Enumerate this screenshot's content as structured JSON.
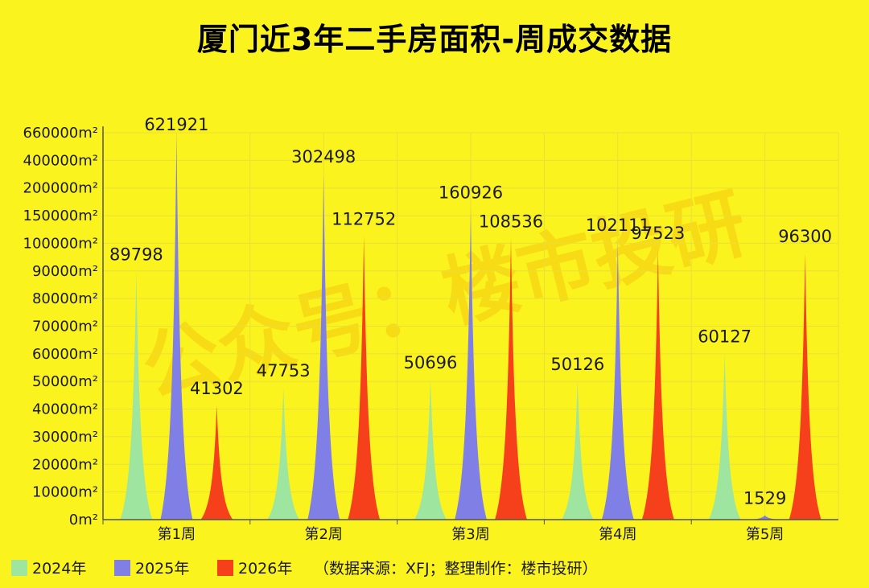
{
  "watermark": "公众号：楼市投研",
  "chart_data": {
    "type": "bar",
    "title": "厦门近3年二手房面积-周成交数据",
    "xlabel": "",
    "ylabel": "",
    "categories": [
      "第1周",
      "第2周",
      "第3周",
      "第4周",
      "第5周"
    ],
    "y_ticks": [
      {
        "value": 0,
        "label": "0m²"
      },
      {
        "value": 10000,
        "label": "10000m²"
      },
      {
        "value": 20000,
        "label": "20000m²"
      },
      {
        "value": 30000,
        "label": "30000m²"
      },
      {
        "value": 40000,
        "label": "40000m²"
      },
      {
        "value": 50000,
        "label": "50000m²"
      },
      {
        "value": 60000,
        "label": "60000m²"
      },
      {
        "value": 70000,
        "label": "70000m²"
      },
      {
        "value": 80000,
        "label": "80000m²"
      },
      {
        "value": 90000,
        "label": "90000m²"
      },
      {
        "value": 100000,
        "label": "100000m²"
      },
      {
        "value": 150000,
        "label": "150000m²"
      },
      {
        "value": 200000,
        "label": "200000m²"
      },
      {
        "value": 400000,
        "label": "400000m²"
      },
      {
        "value": 660000,
        "label": "660000m²"
      }
    ],
    "series": [
      {
        "name": "2024年",
        "color": "#9ee6a0",
        "values": [
          89798,
          47753,
          50696,
          50126,
          60127
        ]
      },
      {
        "name": "2025年",
        "color": "#7f7fe6",
        "values": [
          621921,
          302498,
          160926,
          102111,
          1529
        ]
      },
      {
        "name": "2026年",
        "color": "#f6401c",
        "values": [
          41302,
          112752,
          108536,
          97523,
          96300
        ]
      }
    ],
    "legend_position": "bottom-left",
    "source_note": "（数据来源：XFJ；整理制作：楼市投研）",
    "grid": true
  }
}
